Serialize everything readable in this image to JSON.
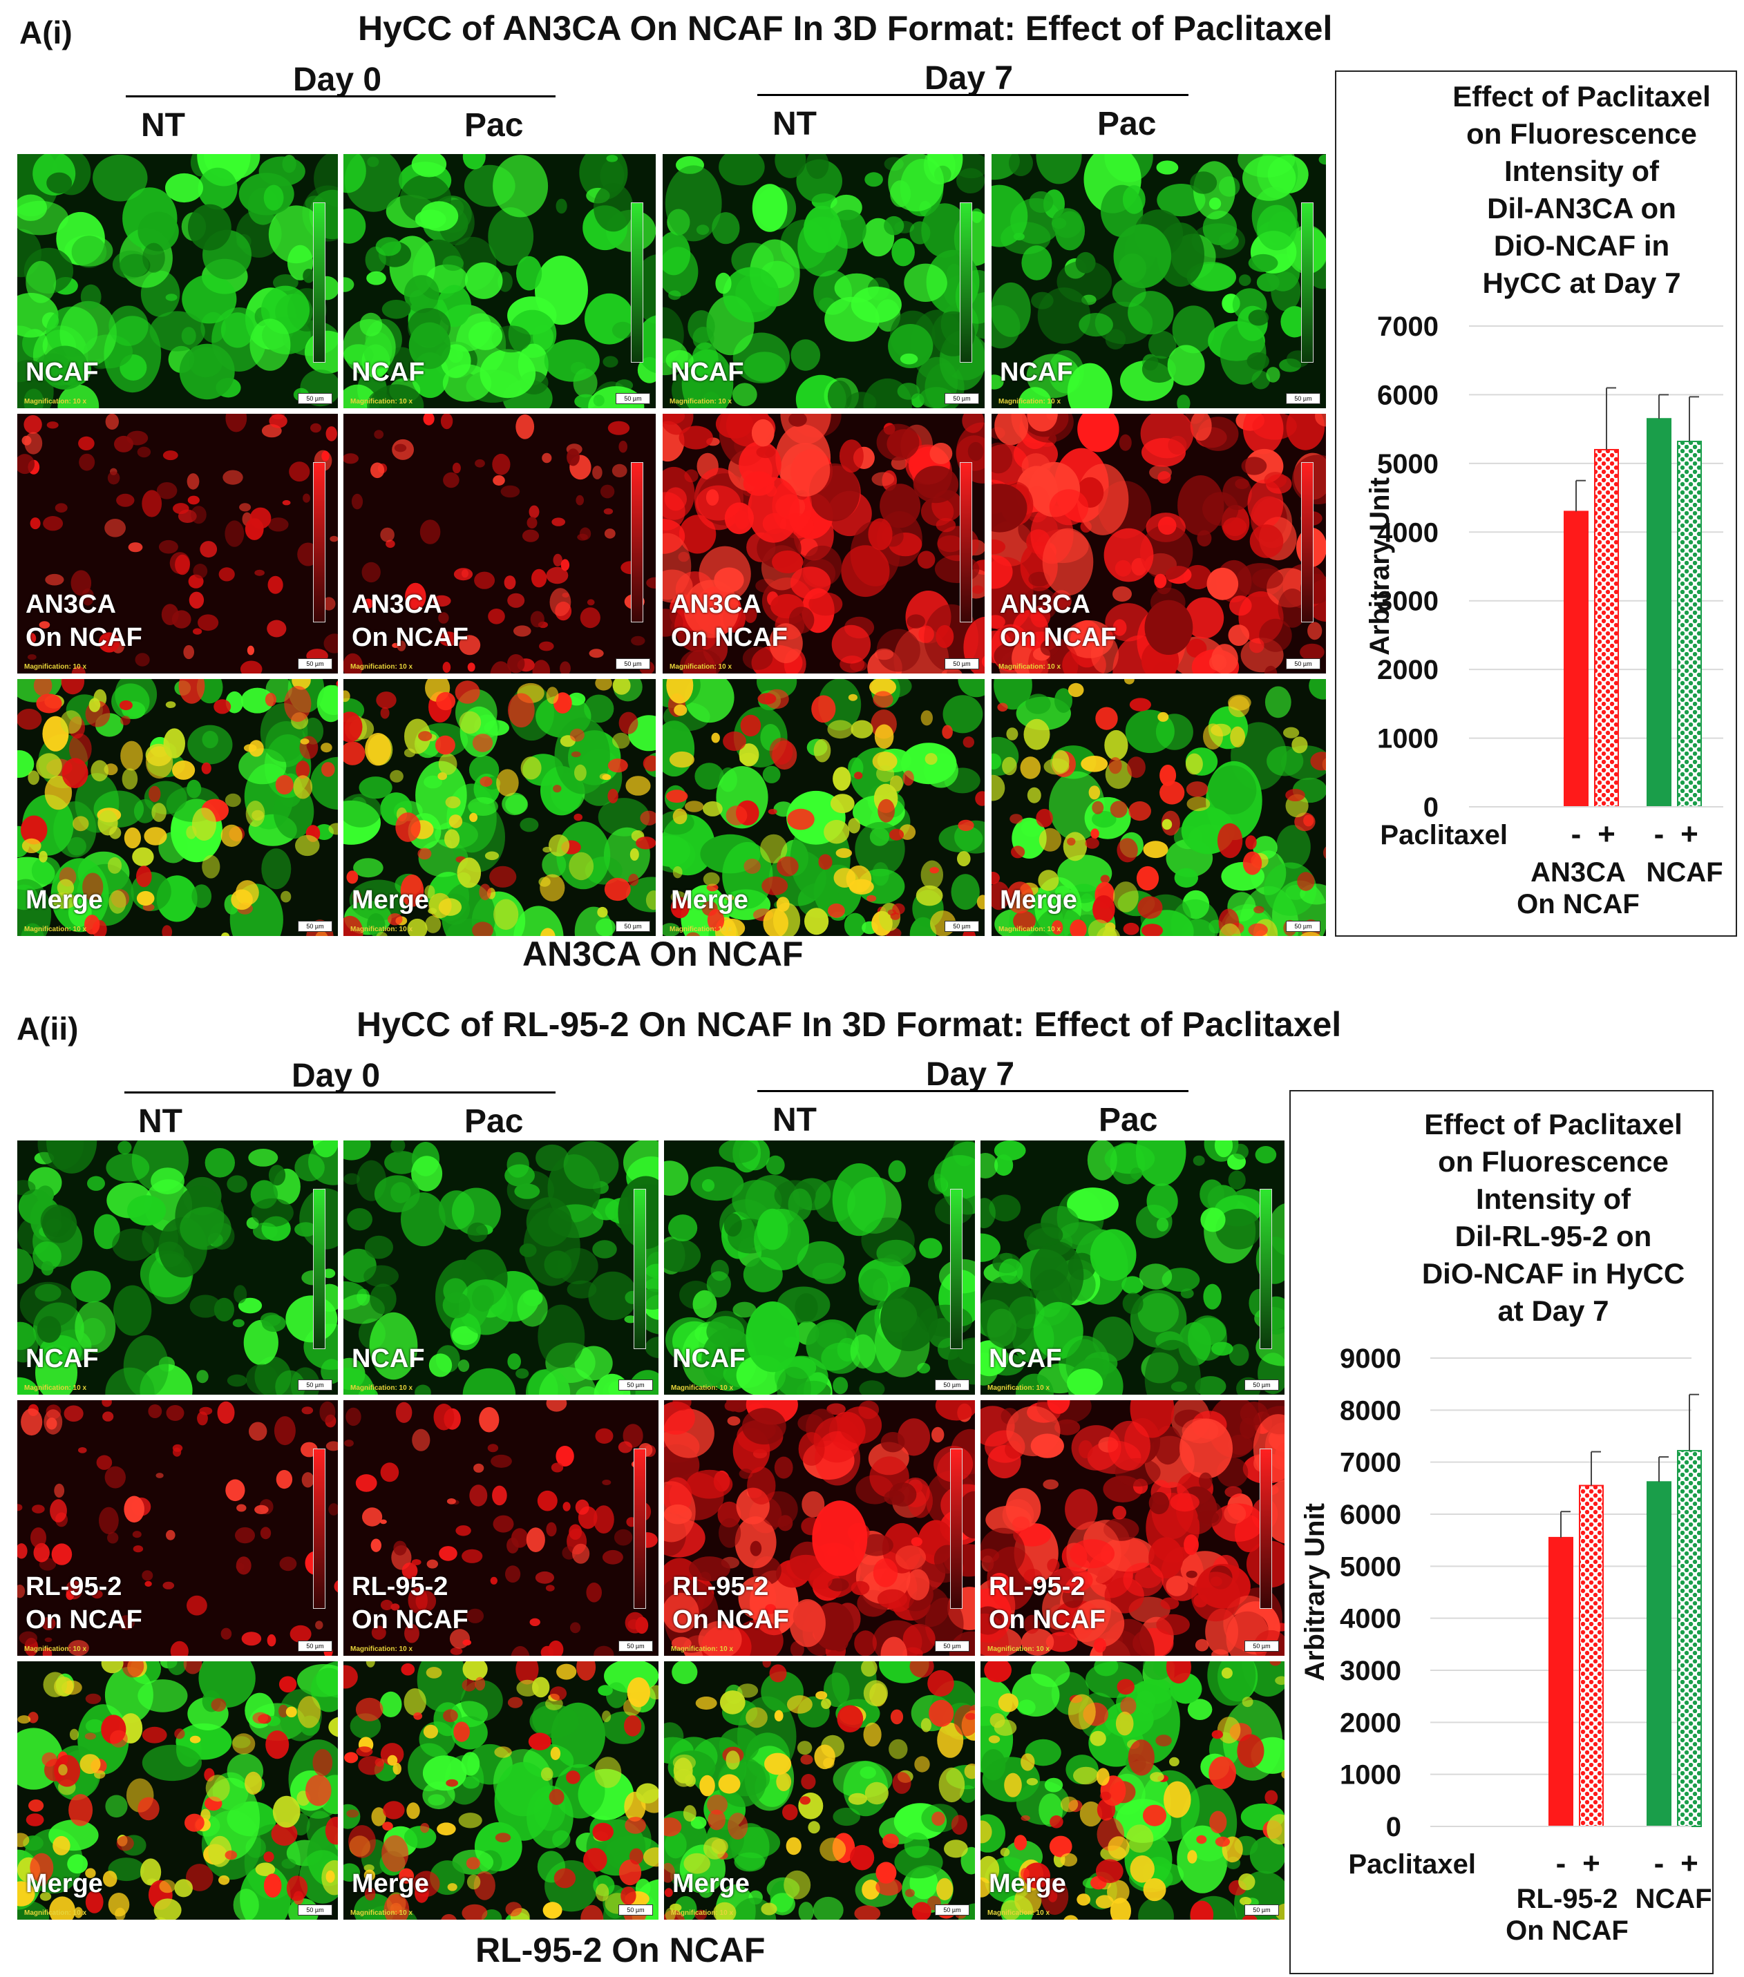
{
  "panel_a": {
    "label": "A(i)",
    "title": "HyCC of AN3CA On NCAF In 3D Format: Effect of Paclitaxel",
    "day0": "Day 0",
    "day7": "Day 7",
    "col_nt": "NT",
    "col_pac": "Pac",
    "row_labels": [
      "NCAF",
      "AN3CA\nOn NCAF",
      "Merge"
    ],
    "magnification": "Magnification: 10 x",
    "scale_bar": "50 µm",
    "caption": "AN3CA On NCAF"
  },
  "panel_b": {
    "label": "A(ii)",
    "title": "HyCC of RL-95-2 On NCAF In 3D Format: Effect of Paclitaxel",
    "day0": "Day 0",
    "day7": "Day 7",
    "col_nt": "NT",
    "col_pac": "Pac",
    "row_labels": [
      "NCAF",
      "RL-95-2\nOn NCAF",
      "Merge"
    ],
    "magnification": "Magnification: 10 x",
    "scale_bar": "50 µm",
    "caption": "RL-95-2 On NCAF"
  },
  "chart_data": [
    {
      "type": "bar",
      "title": [
        "Effect of Paclitaxel",
        "on Fluorescence",
        "Intensity of",
        "Dil-AN3CA on",
        "DiO-NCAF in",
        "HyCC at Day 7"
      ],
      "ylabel": "Arbitrary Unit",
      "ylim": [
        0,
        7000
      ],
      "yticks": [
        0,
        1000,
        2000,
        3000,
        4000,
        5000,
        6000,
        7000
      ],
      "x_row_label": "Paclitaxel",
      "treatment_labels": [
        "-",
        "+",
        "-",
        "+"
      ],
      "groups": [
        {
          "label": [
            "AN3CA",
            "On NCAF"
          ],
          "values": [
            4300,
            5200
          ],
          "errors": [
            450,
            900
          ],
          "color": "#ff1a1a"
        },
        {
          "label": [
            "NCAF"
          ],
          "values": [
            5650,
            5320
          ],
          "errors": [
            350,
            650
          ],
          "color": "#1a9e4a"
        }
      ]
    },
    {
      "type": "bar",
      "title": [
        "Effect of Paclitaxel",
        "on Fluorescence",
        "Intensity of",
        "Dil-RL-95-2 on",
        "DiO-NCAF in HyCC",
        "at Day 7"
      ],
      "ylabel": "Arbitrary Unit",
      "ylim": [
        0,
        9000
      ],
      "yticks": [
        0,
        1000,
        2000,
        3000,
        4000,
        5000,
        6000,
        7000,
        8000,
        9000
      ],
      "x_row_label": "Paclitaxel",
      "treatment_labels": [
        "-",
        "+",
        "-",
        "+"
      ],
      "groups": [
        {
          "label": [
            "RL-95-2",
            "On NCAF"
          ],
          "values": [
            5550,
            6550
          ],
          "errors": [
            500,
            650
          ],
          "color": "#ff1a1a"
        },
        {
          "label": [
            "NCAF"
          ],
          "values": [
            6620,
            7220
          ],
          "errors": [
            480,
            1080
          ],
          "color": "#1a9e4a"
        }
      ]
    }
  ]
}
